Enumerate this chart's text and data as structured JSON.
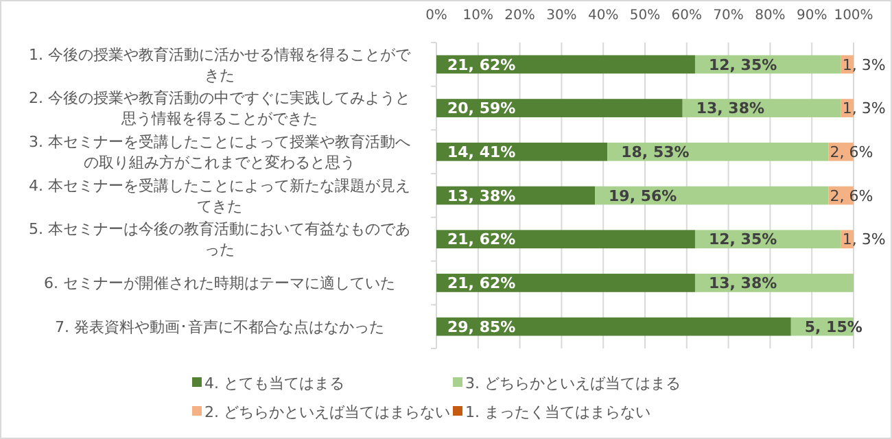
{
  "chart_data": {
    "type": "bar",
    "orientation": "horizontal",
    "stacked": true,
    "categories": [
      "1. 今後の授業や教育活動に活かせる情報を得ることができた",
      "2. 今後の授業や教育活動の中ですぐに実践してみようと思う情報を得ることができた",
      "3. 本セミナーを受講したことによって授業や教育活動への取り組み方がこれまでと変わると思う",
      "4. 本セミナーを受講したことによって新たな課題が見えてきた",
      "5. 本セミナーは今後の教育活動において有益なものであった",
      "6. セミナーが開催された時期はテーマに適していた",
      "7. 発表資料や動画･音声に不都合な点はなかった"
    ],
    "series": [
      {
        "name": "4. とても当てはまる",
        "color": "#548235",
        "values": [
          62,
          59,
          41,
          38,
          62,
          62,
          85
        ],
        "value_labels": [
          "21, 62%",
          "20, 59%",
          "14, 41%",
          "13, 38%",
          "21, 62%",
          "21, 62%",
          "29, 85%"
        ]
      },
      {
        "name": "3. どちらかといえば当てはまる",
        "color": "#a9d18e",
        "values": [
          35,
          38,
          53,
          56,
          35,
          38,
          15
        ],
        "value_labels": [
          "12, 35%",
          "13, 38%",
          "18, 53%",
          "19, 56%",
          "12, 35%",
          "13, 38%",
          "5, 15%"
        ]
      },
      {
        "name": "2. どちらかといえば当てはまらない",
        "color": "#f4b183",
        "values": [
          3,
          3,
          6,
          6,
          3,
          0,
          0
        ],
        "value_labels": [
          "1, 3%",
          "1, 3%",
          "2, 6%",
          "2, 6%",
          "1, 3%",
          null,
          null
        ]
      },
      {
        "name": "1. まったく当てはまらない",
        "color": "#c55a11",
        "values": [
          0,
          0,
          0,
          0,
          0,
          0,
          0
        ],
        "value_labels": [
          null,
          null,
          null,
          null,
          null,
          null,
          null
        ]
      }
    ],
    "xlim": [
      0,
      100
    ],
    "xticks": [
      {
        "value": 0,
        "label": "0%"
      },
      {
        "value": 10,
        "label": "10%"
      },
      {
        "value": 20,
        "label": "20%"
      },
      {
        "value": 30,
        "label": "30%"
      },
      {
        "value": 40,
        "label": "40%"
      },
      {
        "value": 50,
        "label": "50%"
      },
      {
        "value": 60,
        "label": "60%"
      },
      {
        "value": 70,
        "label": "70%"
      },
      {
        "value": 80,
        "label": "80%"
      },
      {
        "value": 90,
        "label": "90%"
      },
      {
        "value": 100,
        "label": "100%"
      }
    ],
    "grid": "x",
    "legend": "bottom"
  }
}
